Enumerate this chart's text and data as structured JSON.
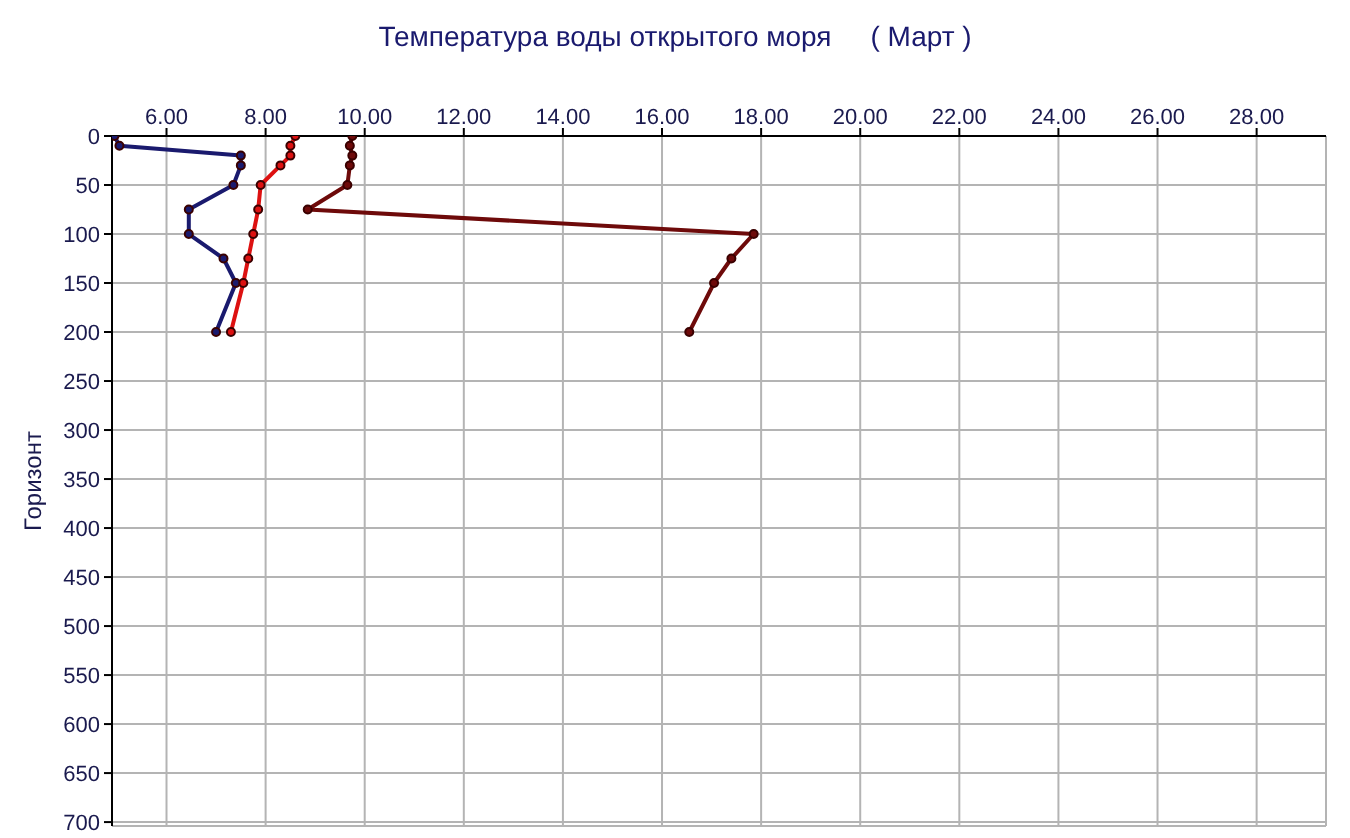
{
  "chart_data": {
    "type": "line",
    "title": "Температура воды открытого моря     ( Март )",
    "ylabel": "Горизонт",
    "xlim": [
      4.9,
      29.4
    ],
    "xticks": [
      {
        "value": 6,
        "label": "6.00"
      },
      {
        "value": 8,
        "label": "8.00"
      },
      {
        "value": 10,
        "label": "10.00"
      },
      {
        "value": 12,
        "label": "12.00"
      },
      {
        "value": 14,
        "label": "14.00"
      },
      {
        "value": 16,
        "label": "16.00"
      },
      {
        "value": 18,
        "label": "18.00"
      },
      {
        "value": 20,
        "label": "20.00"
      },
      {
        "value": 22,
        "label": "22.00"
      },
      {
        "value": 24,
        "label": "24.00"
      },
      {
        "value": 26,
        "label": "26.00"
      },
      {
        "value": 28,
        "label": "28.00"
      }
    ],
    "ylim": [
      704,
      0
    ],
    "yticks": [
      0,
      50,
      100,
      150,
      200,
      250,
      300,
      350,
      400,
      450,
      500,
      550,
      600,
      650,
      700
    ],
    "grid": true,
    "marker": "circle",
    "line_style": "solid",
    "series": [
      {
        "color": "#1a1a6e",
        "x": [
          4.95,
          5.05,
          7.5,
          7.5,
          7.35,
          6.45,
          6.45,
          7.15,
          7.4,
          7.0
        ],
        "values": [
          0,
          10,
          20,
          30,
          50,
          75,
          100,
          125,
          150,
          200
        ]
      },
      {
        "color": "#dd1111",
        "x": [
          8.6,
          8.5,
          8.5,
          8.3,
          7.9,
          7.85,
          7.75,
          7.65,
          7.55,
          7.3
        ],
        "values": [
          0,
          10,
          20,
          30,
          50,
          75,
          100,
          125,
          150,
          200
        ]
      },
      {
        "color": "#6e0a0a",
        "x": [
          9.75,
          9.7,
          9.75,
          9.7,
          9.65,
          8.85,
          17.85,
          17.4,
          17.05,
          16.55
        ],
        "values": [
          0,
          10,
          20,
          30,
          50,
          75,
          100,
          125,
          150,
          200
        ]
      }
    ]
  }
}
